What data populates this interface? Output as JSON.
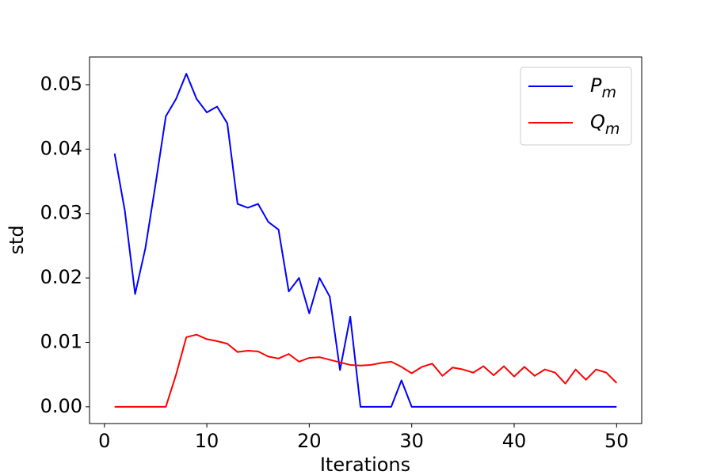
{
  "chart_data": {
    "type": "line",
    "xlabel": "Iterations",
    "ylabel": "std",
    "x": [
      1,
      2,
      3,
      4,
      5,
      6,
      7,
      8,
      9,
      10,
      11,
      12,
      13,
      14,
      15,
      16,
      17,
      18,
      19,
      20,
      21,
      22,
      23,
      24,
      25,
      26,
      27,
      28,
      29,
      30,
      31,
      32,
      33,
      34,
      35,
      36,
      37,
      38,
      39,
      40,
      41,
      42,
      43,
      44,
      45,
      46,
      47,
      48,
      49,
      50
    ],
    "series": [
      {
        "name": "P_m",
        "color": "#0000ff",
        "values": [
          0.0393,
          0.0304,
          0.0175,
          0.0246,
          0.0346,
          0.0451,
          0.0478,
          0.0517,
          0.0478,
          0.0457,
          0.0466,
          0.044,
          0.0315,
          0.0309,
          0.0315,
          0.0287,
          0.0275,
          0.0179,
          0.02,
          0.0145,
          0.02,
          0.0171,
          0.0057,
          0.014,
          0,
          0,
          0,
          0,
          0.0041,
          0,
          0,
          0,
          0,
          0,
          0,
          0,
          0,
          0,
          0,
          0,
          0,
          0,
          0,
          0,
          0,
          0,
          0,
          0,
          0,
          0
        ]
      },
      {
        "name": "Q_m",
        "color": "#ff0000",
        "values": [
          0,
          0,
          0,
          0,
          0,
          0,
          0.005,
          0.0108,
          0.0112,
          0.0105,
          0.0102,
          0.0098,
          0.0085,
          0.0087,
          0.0086,
          0.0078,
          0.0075,
          0.0082,
          0.007,
          0.0076,
          0.0077,
          0.0073,
          0.0069,
          0.0065,
          0.0064,
          0.0065,
          0.0068,
          0.007,
          0.0062,
          0.0052,
          0.0062,
          0.0067,
          0.0048,
          0.0061,
          0.0058,
          0.0053,
          0.0063,
          0.0049,
          0.0063,
          0.0047,
          0.0062,
          0.0048,
          0.0058,
          0.0053,
          0.0036,
          0.0058,
          0.0042,
          0.0058,
          0.0053,
          0.0037
        ]
      }
    ],
    "xlim": [
      -1.45,
      52.45
    ],
    "xticks": [
      0,
      10,
      20,
      30,
      40,
      50
    ],
    "ylim": [
      -0.0026,
      0.0543
    ],
    "yticks": [
      {
        "value": 0,
        "label": "0.00"
      },
      {
        "value": 0.01,
        "label": "0.01"
      },
      {
        "value": 0.02,
        "label": "0.02"
      },
      {
        "value": 0.03,
        "label": "0.03"
      },
      {
        "value": 0.04,
        "label": "0.04"
      },
      {
        "value": 0.05,
        "label": "0.05"
      }
    ],
    "legend": "upper right",
    "grid": false
  }
}
